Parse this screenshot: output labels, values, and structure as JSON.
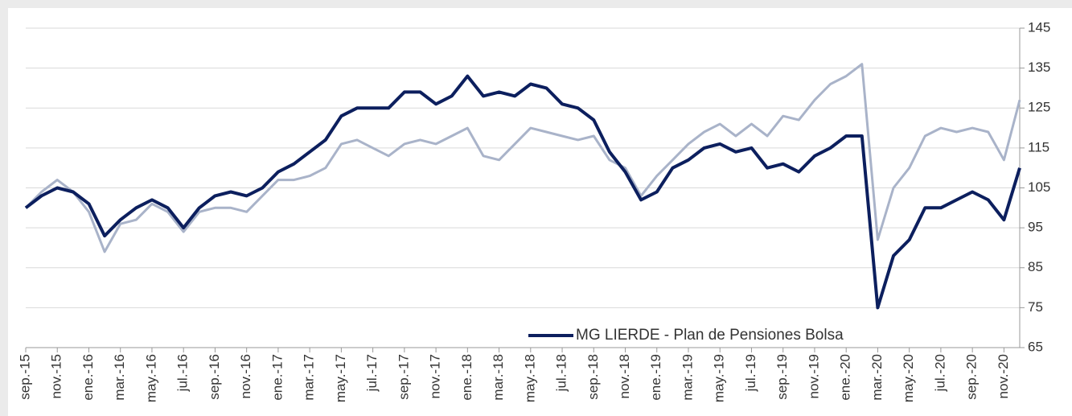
{
  "chart_data": {
    "type": "line",
    "categories": [
      "sep.-15",
      null,
      "nov.-15",
      null,
      "ene.-16",
      null,
      "mar.-16",
      null,
      "may.-16",
      null,
      "jul.-16",
      null,
      "sep.-16",
      null,
      "nov.-16",
      null,
      "ene.-17",
      null,
      "mar.-17",
      null,
      "may.-17",
      null,
      "jul.-17",
      null,
      "sep.-17",
      null,
      "nov.-17",
      null,
      "ene.-18",
      null,
      "mar.-18",
      null,
      "may.-18",
      null,
      "jul.-18",
      null,
      "sep.-18",
      null,
      "nov.-18",
      null,
      "ene.-19",
      null,
      "mar.-19",
      null,
      "may.-19",
      null,
      "jul.-19",
      null,
      "sep.-19",
      null,
      "nov.-19",
      null,
      "ene.-20",
      null,
      "mar.-20",
      null,
      "may.-20",
      null,
      "jul.-20",
      null,
      "sep.-20",
      null,
      "nov.-20",
      null
    ],
    "series": [
      {
        "color": "#a9b3c9",
        "values": [
          100,
          104,
          107,
          104,
          99,
          89,
          96,
          97,
          101,
          99,
          94,
          99,
          100,
          100,
          99,
          103,
          107,
          107,
          108,
          110,
          116,
          117,
          115,
          113,
          116,
          117,
          116,
          118,
          120,
          113,
          112,
          116,
          120,
          119,
          118,
          117,
          118,
          112,
          110,
          103,
          108,
          112,
          116,
          119,
          121,
          118,
          121,
          118,
          123,
          122,
          127,
          131,
          133,
          136,
          92,
          105,
          110,
          118,
          120,
          119,
          120,
          119,
          112,
          127
        ]
      },
      {
        "name": "MG LIERDE - Plan de Pensiones Bolsa",
        "color": "#0c1f5e",
        "values": [
          100,
          103,
          105,
          104,
          101,
          93,
          97,
          100,
          102,
          100,
          95,
          100,
          103,
          104,
          103,
          105,
          109,
          111,
          114,
          117,
          123,
          125,
          125,
          125,
          129,
          129,
          126,
          128,
          133,
          128,
          129,
          128,
          131,
          130,
          126,
          125,
          122,
          114,
          109,
          102,
          104,
          110,
          112,
          115,
          116,
          114,
          115,
          110,
          111,
          109,
          113,
          115,
          118,
          118,
          75,
          88,
          92,
          100,
          100,
          102,
          104,
          102,
          97,
          110
        ]
      }
    ],
    "ylim": [
      65,
      145
    ],
    "yticks": [
      65,
      75,
      85,
      95,
      105,
      115,
      125,
      135,
      145
    ],
    "grid": true,
    "legend": "lower center"
  }
}
